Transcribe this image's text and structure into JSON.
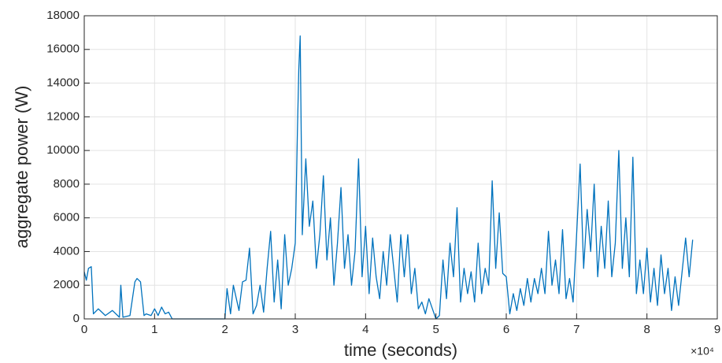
{
  "chart_data": {
    "type": "line",
    "x_label": "time (seconds)",
    "y_label": "aggregate power (W)",
    "x_exponent_label": "×10⁴",
    "xlim": [
      0,
      9
    ],
    "xticks": [
      0,
      1,
      2,
      3,
      4,
      5,
      6,
      7,
      8,
      9
    ],
    "ylim": [
      0,
      18000
    ],
    "yticks": [
      0,
      2000,
      4000,
      6000,
      8000,
      10000,
      12000,
      14000,
      16000,
      18000
    ],
    "grid": true,
    "x": [
      0,
      0.03,
      0.06,
      0.1,
      0.13,
      0.2,
      0.3,
      0.4,
      0.5,
      0.52,
      0.55,
      0.65,
      0.72,
      0.75,
      0.8,
      0.85,
      0.88,
      0.95,
      1.0,
      1.05,
      1.1,
      1.15,
      1.2,
      1.25,
      1.5,
      1.8,
      2.0,
      2.03,
      2.08,
      2.12,
      2.2,
      2.25,
      2.3,
      2.35,
      2.4,
      2.45,
      2.5,
      2.55,
      2.6,
      2.65,
      2.7,
      2.75,
      2.8,
      2.85,
      2.9,
      2.95,
      3.0,
      3.03,
      3.05,
      3.07,
      3.1,
      3.15,
      3.2,
      3.25,
      3.3,
      3.35,
      3.4,
      3.45,
      3.5,
      3.55,
      3.6,
      3.65,
      3.7,
      3.75,
      3.8,
      3.85,
      3.9,
      3.95,
      4.0,
      4.05,
      4.1,
      4.15,
      4.2,
      4.25,
      4.3,
      4.35,
      4.4,
      4.45,
      4.5,
      4.55,
      4.6,
      4.65,
      4.7,
      4.75,
      4.8,
      4.85,
      4.9,
      4.95,
      5.0,
      5.05,
      5.1,
      5.15,
      5.2,
      5.25,
      5.3,
      5.35,
      5.4,
      5.45,
      5.5,
      5.55,
      5.6,
      5.65,
      5.7,
      5.75,
      5.8,
      5.85,
      5.9,
      5.95,
      6.0,
      6.05,
      6.1,
      6.15,
      6.2,
      6.25,
      6.3,
      6.35,
      6.4,
      6.45,
      6.5,
      6.55,
      6.6,
      6.65,
      6.7,
      6.75,
      6.8,
      6.85,
      6.9,
      6.95,
      7.0,
      7.05,
      7.1,
      7.15,
      7.2,
      7.25,
      7.3,
      7.35,
      7.4,
      7.45,
      7.5,
      7.55,
      7.6,
      7.65,
      7.7,
      7.75,
      7.8,
      7.85,
      7.9,
      7.95,
      8.0,
      8.05,
      8.1,
      8.15,
      8.2,
      8.25,
      8.3,
      8.35,
      8.4,
      8.45,
      8.5,
      8.55,
      8.6,
      8.65
    ],
    "series": [
      {
        "color": "#0072bd",
        "values": [
          2800,
          2300,
          3000,
          3100,
          300,
          600,
          200,
          500,
          100,
          2000,
          100,
          200,
          2200,
          2400,
          2200,
          200,
          300,
          200,
          600,
          200,
          700,
          300,
          400,
          0,
          0,
          0,
          0,
          1800,
          300,
          2000,
          500,
          2200,
          2300,
          4200,
          300,
          800,
          2000,
          400,
          3000,
          5200,
          1000,
          3500,
          600,
          5000,
          2000,
          3000,
          4500,
          11000,
          14800,
          16800,
          5000,
          9500,
          5500,
          7000,
          3000,
          5000,
          8500,
          3500,
          6000,
          2000,
          4500,
          7800,
          3000,
          5000,
          2000,
          4000,
          9500,
          2500,
          5500,
          1500,
          4800,
          2500,
          1200,
          4000,
          2000,
          5000,
          3000,
          1000,
          5000,
          2500,
          5000,
          1500,
          3000,
          600,
          1000,
          300,
          1200,
          600,
          0,
          200,
          3500,
          1200,
          4500,
          2500,
          6600,
          1000,
          3000,
          1500,
          2800,
          1000,
          4500,
          1500,
          3000,
          2000,
          8200,
          3000,
          6300,
          2700,
          2500,
          300,
          1500,
          500,
          1800,
          800,
          2400,
          1000,
          2400,
          1500,
          3000,
          1500,
          5200,
          2000,
          3500,
          1500,
          5300,
          1200,
          2400,
          1000,
          5000,
          9200,
          3000,
          6500,
          4000,
          8000,
          2500,
          5500,
          3000,
          7000,
          2500,
          4500,
          10000,
          3000,
          6000,
          2500,
          9600,
          1500,
          3500,
          1500,
          4200,
          1000,
          3000,
          800,
          3800,
          1500,
          3000,
          500,
          2500,
          800,
          2800,
          4800,
          2500,
          4700
        ]
      }
    ]
  }
}
